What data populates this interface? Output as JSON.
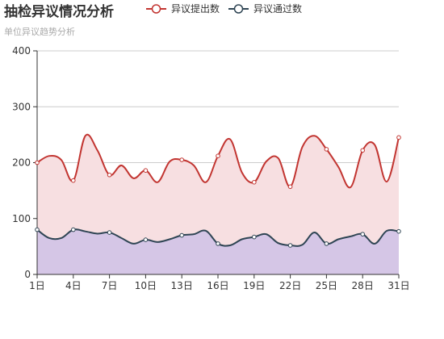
{
  "title": "抽检异议情况分析",
  "subtitle": "单位异议趋势分析",
  "chart_data": {
    "type": "area",
    "title": "抽检异议情况分析",
    "subtitle": "单位异议趋势分析",
    "x": [
      "1日",
      "2日",
      "3日",
      "4日",
      "5日",
      "6日",
      "7日",
      "8日",
      "9日",
      "10日",
      "11日",
      "12日",
      "13日",
      "14日",
      "15日",
      "16日",
      "17日",
      "18日",
      "19日",
      "20日",
      "21日",
      "22日",
      "23日",
      "24日",
      "25日",
      "26日",
      "27日",
      "28日",
      "29日",
      "30日",
      "31日"
    ],
    "x_tick_labels": [
      "1日",
      "4日",
      "7日",
      "10日",
      "13日",
      "16日",
      "19日",
      "22日",
      "25日",
      "28日",
      "31日"
    ],
    "ylim": [
      0,
      400
    ],
    "y_ticks": [
      0,
      100,
      200,
      300,
      400
    ],
    "legend_position": "top",
    "grid": true,
    "smooth": true,
    "series": [
      {
        "name": "异议提出数",
        "color": "#c23531",
        "fill": "#f7dfe1",
        "values": [
          200,
          212,
          205,
          168,
          248,
          222,
          178,
          195,
          172,
          186,
          165,
          202,
          205,
          195,
          165,
          212,
          242,
          182,
          165,
          202,
          208,
          157,
          228,
          248,
          224,
          192,
          156,
          222,
          232,
          166,
          245
        ]
      },
      {
        "name": "异议通过数",
        "color": "#2f4554",
        "fill": "#d5c6e6",
        "values": [
          80,
          65,
          65,
          80,
          77,
          73,
          75,
          65,
          55,
          62,
          58,
          63,
          70,
          72,
          78,
          55,
          52,
          63,
          67,
          72,
          56,
          52,
          53,
          75,
          55,
          63,
          68,
          72,
          55,
          78,
          77
        ]
      }
    ]
  }
}
